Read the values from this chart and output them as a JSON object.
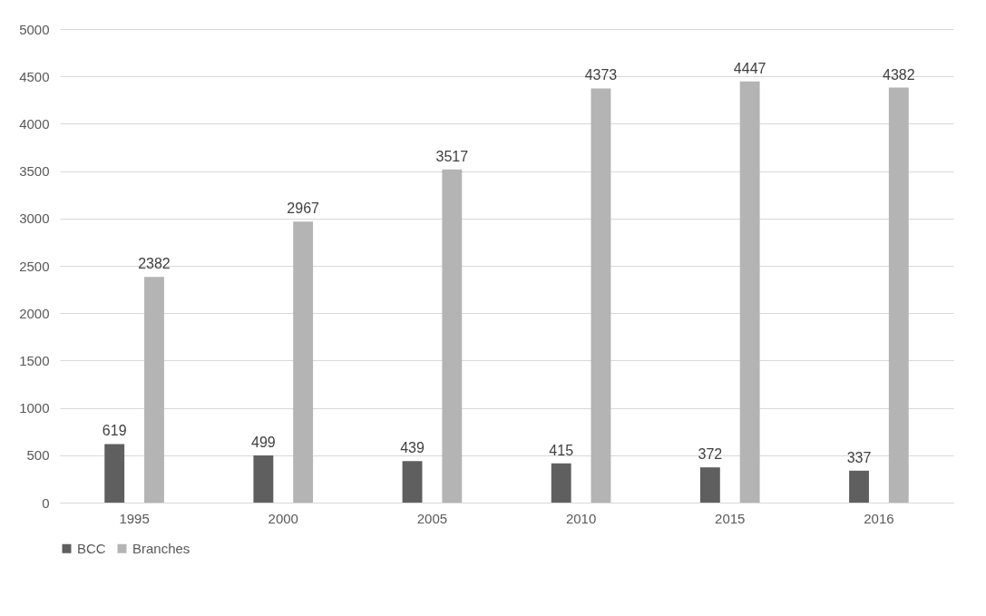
{
  "chart_data": {
    "type": "bar",
    "categories": [
      "1995",
      "2000",
      "2005",
      "2010",
      "2015",
      "2016"
    ],
    "series": [
      {
        "name": "BCC",
        "color": "#5f5f5f",
        "values": [
          619,
          499,
          439,
          415,
          372,
          337
        ]
      },
      {
        "name": "Branches",
        "color": "#b4b4b4",
        "values": [
          2382,
          2967,
          3517,
          4373,
          4447,
          4382
        ]
      }
    ],
    "ylim": [
      0,
      5000
    ],
    "yticks": [
      0,
      500,
      1000,
      1500,
      2000,
      2500,
      3000,
      3500,
      4000,
      4500,
      5000
    ],
    "grid": "y",
    "legend": "bottom",
    "data_labels": true
  }
}
